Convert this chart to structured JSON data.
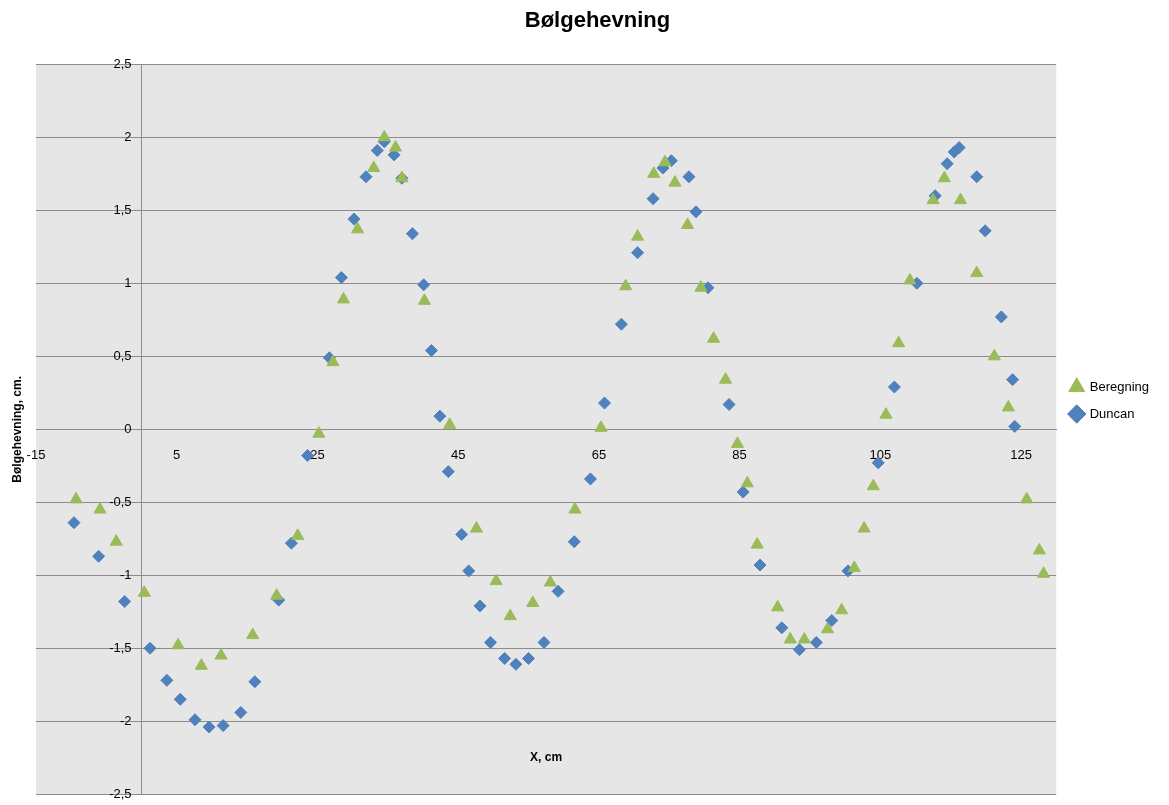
{
  "chart_data": {
    "type": "scatter",
    "title": "Bølgehevning",
    "xlabel": "X, cm",
    "ylabel": "Bølgehevning, cm.",
    "xlim": [
      -15,
      130
    ],
    "xticks": [
      -15,
      5,
      25,
      45,
      65,
      85,
      105,
      125
    ],
    "ylim": [
      -2.5,
      2.5
    ],
    "yticks": [
      {
        "value": -2.5,
        "label": "-2,5"
      },
      -2,
      {
        "value": -1.5,
        "label": "-1,5"
      },
      -1,
      {
        "value": -0.5,
        "label": "-0,5"
      },
      0,
      {
        "value": 0.5,
        "label": "0,5"
      },
      1,
      {
        "value": 1.5,
        "label": "1,5"
      },
      2,
      {
        "value": 2.5,
        "label": "2,5"
      }
    ],
    "grid": "y",
    "legend": "right",
    "series": [
      {
        "name": "Beregning",
        "color": "#9bbb59",
        "marker": "triangle",
        "x": [
          -9.3,
          -5.9,
          -3.6,
          0.4,
          5.2,
          8.5,
          11.3,
          15.8,
          19.2,
          22.2,
          25.2,
          27.2,
          28.7,
          30.7,
          33.0,
          34.5,
          36.1,
          37.0,
          40.2,
          43.8,
          47.6,
          50.4,
          52.4,
          55.6,
          58.1,
          61.6,
          65.3,
          68.8,
          70.5,
          72.8,
          74.4,
          75.8,
          77.6,
          79.5,
          81.3,
          83.0,
          84.7,
          86.1,
          87.5,
          90.4,
          92.2,
          94.2,
          97.5,
          99.5,
          101.3,
          102.7,
          104.0,
          105.8,
          107.6,
          109.2,
          112.5,
          114.1,
          116.4,
          118.7,
          121.2,
          123.2,
          125.8,
          127.6,
          128.2
        ],
        "values": [
          -0.48,
          -0.55,
          -0.77,
          -1.12,
          -1.48,
          -1.62,
          -1.55,
          -1.41,
          -1.14,
          -0.73,
          -0.03,
          0.46,
          0.89,
          1.37,
          1.79,
          2.0,
          1.93,
          1.72,
          0.88,
          0.03,
          -0.68,
          -1.04,
          -1.28,
          -1.19,
          -1.05,
          -0.55,
          0.01,
          0.98,
          1.32,
          1.75,
          1.83,
          1.69,
          1.4,
          0.97,
          0.62,
          0.34,
          -0.1,
          -0.37,
          -0.79,
          -1.22,
          -1.44,
          -1.44,
          -1.37,
          -1.24,
          -0.95,
          -0.68,
          -0.39,
          0.1,
          0.59,
          1.02,
          1.57,
          1.72,
          1.57,
          1.07,
          0.5,
          0.15,
          -0.48,
          -0.83,
          -0.99
        ]
      },
      {
        "name": "Duncan",
        "color": "#4f81bd",
        "marker": "diamond",
        "x": [
          -9.6,
          -6.1,
          -2.4,
          1.2,
          3.6,
          5.5,
          7.6,
          9.6,
          11.6,
          14.1,
          16.1,
          19.5,
          21.3,
          23.6,
          26.7,
          28.4,
          30.2,
          31.9,
          33.5,
          34.5,
          35.9,
          37.0,
          38.5,
          40.1,
          41.2,
          42.4,
          43.6,
          45.5,
          46.5,
          48.1,
          49.6,
          51.6,
          53.2,
          55.0,
          57.2,
          59.2,
          61.5,
          63.8,
          65.8,
          68.2,
          70.5,
          72.7,
          74.1,
          75.3,
          77.8,
          78.8,
          80.5,
          83.5,
          85.5,
          87.9,
          91.0,
          93.5,
          95.9,
          98.1,
          100.4,
          104.7,
          107.0,
          110.2,
          112.8,
          114.5,
          115.5,
          116.2,
          118.7,
          119.9,
          122.2,
          123.8,
          124.1
        ],
        "values": [
          -0.64,
          -0.87,
          -1.18,
          -1.5,
          -1.72,
          -1.85,
          -1.99,
          -2.04,
          -2.03,
          -1.94,
          -1.73,
          -1.17,
          -0.78,
          -0.18,
          0.49,
          1.04,
          1.44,
          1.73,
          1.91,
          1.97,
          1.88,
          1.72,
          1.34,
          0.99,
          0.54,
          0.09,
          -0.29,
          -0.72,
          -0.97,
          -1.21,
          -1.46,
          -1.57,
          -1.61,
          -1.57,
          -1.46,
          -1.11,
          -0.77,
          -0.34,
          0.18,
          0.72,
          1.21,
          1.58,
          1.79,
          1.84,
          1.73,
          1.49,
          0.97,
          0.17,
          -0.43,
          -0.93,
          -1.36,
          -1.51,
          -1.46,
          -1.31,
          -0.97,
          -0.23,
          0.29,
          1.0,
          1.6,
          1.82,
          1.9,
          1.93,
          1.73,
          1.36,
          0.77,
          0.34,
          0.02
        ]
      }
    ]
  }
}
